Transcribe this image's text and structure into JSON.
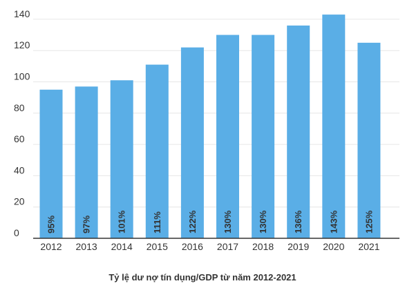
{
  "chart_data": {
    "type": "bar",
    "title": "",
    "caption": "Tỷ lệ dư nợ tín dụng/GDP từ năm 2012-2021",
    "xlabel": "",
    "ylabel": "",
    "categories": [
      "2012",
      "2013",
      "2014",
      "2015",
      "2016",
      "2017",
      "2018",
      "2019",
      "2020",
      "2021"
    ],
    "values": [
      95,
      97,
      101,
      111,
      122,
      130,
      130,
      136,
      143,
      125
    ],
    "data_labels": [
      "95%",
      "97%",
      "101%",
      "111%",
      "122%",
      "130%",
      "130%",
      "136%",
      "143%",
      "125%"
    ],
    "y_ticks": [
      0,
      20,
      40,
      60,
      80,
      100,
      120,
      140
    ],
    "ylim": [
      0,
      145
    ],
    "grid": true,
    "legend": "none"
  },
  "colors": {
    "bar": "#5AAEE6",
    "grid": "#E6E6E6",
    "axis": "#333333",
    "text": "#333333"
  }
}
